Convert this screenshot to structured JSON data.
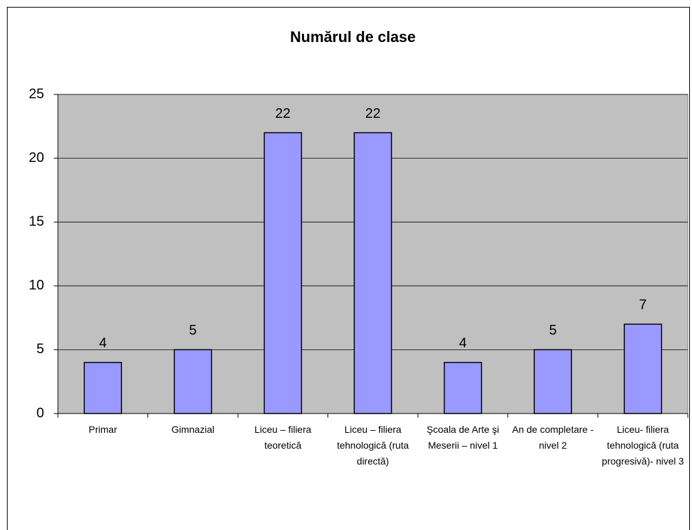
{
  "chart_data": {
    "type": "bar",
    "title": "Numărul de clase",
    "categories": [
      "Primar",
      "Gimnazial",
      "Liceu – filiera teoretică",
      "Liceu – filiera tehnologică (ruta directă)",
      "Şcoala de Arte şi Meserii – nivel 1",
      "An de completare - nivel 2",
      "Liceu- filiera tehnologică (ruta progresivă)- nivel 3"
    ],
    "values": [
      4,
      5,
      22,
      22,
      4,
      5,
      7
    ],
    "color": "#9999ff",
    "plot_background": "#c0c0c0",
    "ylim": [
      0,
      25
    ],
    "yticks": [
      0,
      5,
      10,
      15,
      20,
      25
    ],
    "grid": true
  }
}
